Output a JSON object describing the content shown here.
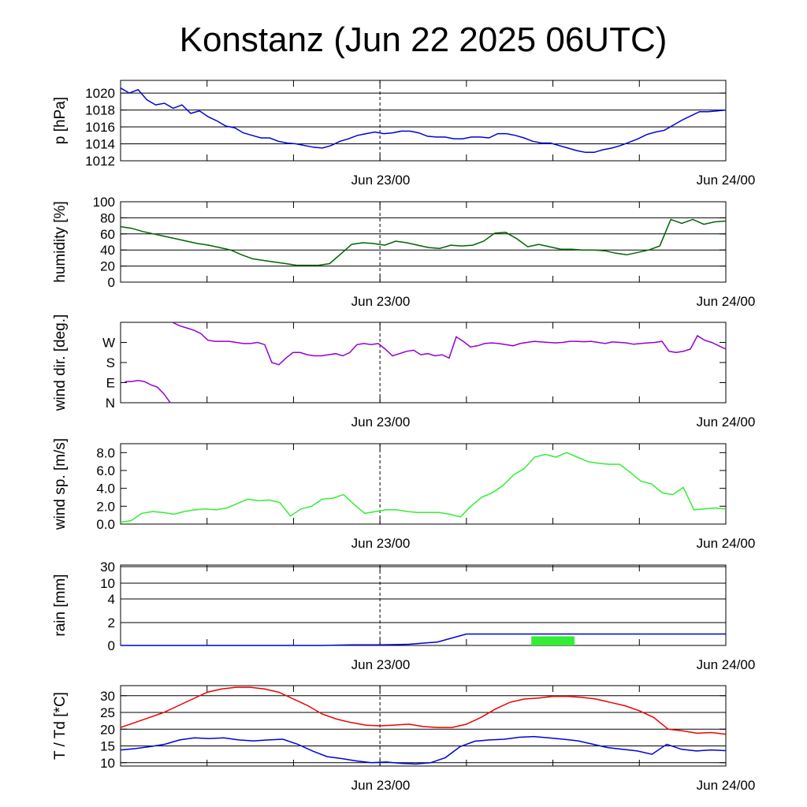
{
  "title": "Konstanz (Jun 22 2025 06UTC)",
  "colors": {
    "pressure": "#0000dd",
    "humidity": "#006400",
    "wind_dir": "#9400d3",
    "wind_speed": "#33ee33",
    "rain_line": "#0000dd",
    "rain_bar": "#33ee33",
    "temperature": "#ee0000",
    "dewpoint": "#0000dd"
  },
  "chart_data": [
    {
      "type": "line",
      "ylabel": "p [hPa]",
      "x_tick_labels": [
        "Jun 23/00",
        "Jun 24/00"
      ],
      "x_range_hours": [
        0,
        42
      ],
      "ylim": [
        1012,
        1021.5
      ],
      "yticks": [
        1012,
        1014,
        1016,
        1018,
        1020
      ],
      "grid": true,
      "series": [
        {
          "values": [
            1020.6,
            1020.0,
            1020.4,
            1019.2,
            1018.6,
            1018.8,
            1018.2,
            1018.6,
            1017.6,
            1017.9,
            1017.2,
            1016.7,
            1016.1,
            1015.9,
            1015.3,
            1015.0,
            1014.7,
            1014.7,
            1014.3,
            1014.1,
            1014.0,
            1013.8,
            1013.6,
            1013.5,
            1013.8,
            1014.3,
            1014.6,
            1015.0,
            1015.2,
            1015.4,
            1015.2,
            1015.3,
            1015.5,
            1015.5,
            1015.3,
            1014.9,
            1014.8,
            1014.8,
            1014.6,
            1014.6,
            1014.8,
            1014.8,
            1014.7,
            1015.2,
            1015.2,
            1015.0,
            1014.7,
            1014.3,
            1014.1,
            1014.1,
            1013.8,
            1013.5,
            1013.2,
            1013.0,
            1013.0,
            1013.3,
            1013.5,
            1013.8,
            1014.2,
            1014.6,
            1015.1,
            1015.4,
            1015.6,
            1016.2,
            1016.8,
            1017.3,
            1017.8,
            1017.8,
            1017.9,
            1018.0
          ]
        }
      ]
    },
    {
      "type": "line",
      "ylabel": "humidity [%]",
      "x_tick_labels": [
        "Jun 23/00",
        "Jun 24/00"
      ],
      "x_range_hours": [
        0,
        42
      ],
      "ylim": [
        0,
        100
      ],
      "yticks": [
        0,
        20,
        40,
        60,
        80,
        100
      ],
      "grid": true,
      "series": [
        {
          "values": [
            69,
            67,
            63,
            60,
            57,
            54,
            51,
            48,
            46,
            43,
            40,
            34,
            29,
            27,
            25,
            23,
            21,
            21,
            21,
            23,
            35,
            47,
            49,
            48,
            46,
            51,
            49,
            46,
            43,
            42,
            46,
            45,
            46,
            51,
            61,
            62,
            54,
            44,
            47,
            44,
            41,
            41,
            40,
            40,
            39,
            36,
            34,
            37,
            40,
            45,
            78,
            73,
            78,
            72,
            75,
            76
          ]
        }
      ]
    },
    {
      "type": "line",
      "ylabel": "wind dir. [deg.]",
      "x_tick_labels": [
        "Jun 23/00",
        "Jun 24/00"
      ],
      "x_range_hours": [
        0,
        42
      ],
      "ylim": [
        0,
        360
      ],
      "yticks": [
        0,
        90,
        180,
        270
      ],
      "ytick_labels": [
        "N",
        "E",
        "S",
        "W"
      ],
      "grid": false,
      "series": [
        {
          "values": [
            95,
            95,
            100,
            95,
            80,
            70,
            40,
            0
          ]
        },
        {
          "values": [
            360,
            345,
            335,
            325,
            310,
            280,
            275,
            275,
            275,
            270,
            265,
            265,
            270,
            260,
            180,
            170,
            200,
            225,
            225,
            215,
            210,
            210,
            215,
            220,
            210,
            225,
            260,
            265,
            260,
            265,
            240,
            210,
            220,
            230,
            235,
            215,
            220,
            210,
            215,
            200,
            295,
            275,
            250,
            255,
            265,
            268,
            265,
            260,
            255,
            265,
            270,
            275,
            272,
            270,
            268,
            270,
            275,
            275,
            273,
            275,
            270,
            265,
            272,
            270,
            268,
            262,
            265,
            268,
            270,
            275,
            230,
            225,
            230,
            240,
            300,
            280,
            270,
            255,
            240
          ]
        }
      ]
    },
    {
      "type": "line",
      "ylabel": "wind sp. [m/s]",
      "x_tick_labels": [
        "Jun 23/00",
        "Jun 24/00"
      ],
      "x_range_hours": [
        0,
        42
      ],
      "ylim": [
        0,
        9
      ],
      "yticks": [
        0,
        2,
        4,
        6,
        8
      ],
      "ytick_labels": [
        "0.0",
        "2.0",
        "4.0",
        "6.0",
        "8.0"
      ],
      "grid": false,
      "series": [
        {
          "values": [
            0.2,
            0.4,
            1.2,
            1.4,
            1.3,
            1.1,
            1.4,
            1.6,
            1.7,
            1.6,
            1.8,
            2.3,
            2.8,
            2.6,
            2.7,
            2.4,
            0.9,
            1.7,
            2.0,
            2.8,
            2.9,
            3.3,
            2.2,
            1.2,
            1.4,
            1.6,
            1.6,
            1.4,
            1.3,
            1.3,
            1.3,
            1.1,
            0.8,
            2.0,
            3.0,
            3.5,
            4.3,
            5.5,
            6.2,
            7.5,
            7.8,
            7.5,
            8.0,
            7.5,
            7.0,
            6.8,
            6.7,
            6.7,
            5.8,
            4.8,
            4.5,
            3.5,
            3.3,
            4.1,
            1.6,
            1.7,
            1.8,
            1.7
          ]
        }
      ]
    },
    {
      "type": "bar",
      "ylabel": "rain [mm]",
      "x_tick_labels": [
        "Jun 23/00",
        "Jun 24/00"
      ],
      "x_range_hours": [
        0,
        42
      ],
      "yticks": [
        0,
        2,
        4,
        10,
        30
      ],
      "grid": true,
      "series": [
        {
          "values": [
            0,
            0,
            0,
            0,
            0,
            0,
            0,
            0,
            0.05,
            0.05,
            0.1,
            0.3,
            1.0,
            1.0,
            1.0,
            1.0,
            1.0,
            1.0,
            1.0,
            1.0,
            1.0,
            1.0
          ]
        },
        {
          "values": [
            0.8
          ]
        }
      ]
    },
    {
      "type": "line",
      "ylabel": "T / Td [*C]",
      "x_tick_labels": [
        "Jun 23/00",
        "Jun 24/00"
      ],
      "x_range_hours": [
        0,
        42
      ],
      "ylim": [
        9,
        33
      ],
      "yticks": [
        10,
        15,
        20,
        25,
        30
      ],
      "grid": true,
      "series": [
        {
          "values": [
            20.5,
            22.0,
            23.5,
            25.0,
            27.0,
            29.0,
            31.0,
            32.0,
            32.5,
            32.5,
            32.0,
            31.0,
            29.0,
            27.0,
            24.5,
            23.0,
            22.0,
            21.2,
            21.0,
            21.2,
            21.5,
            20.8,
            20.5,
            20.5,
            21.5,
            23.5,
            26.0,
            28.0,
            29.0,
            29.3,
            29.8,
            29.8,
            29.5,
            29.0,
            28.0,
            27.0,
            25.5,
            23.5,
            20.0,
            19.5,
            18.8,
            19.0,
            18.5
          ]
        },
        {
          "values": [
            13.8,
            14.2,
            14.8,
            15.5,
            16.8,
            17.4,
            17.2,
            17.4,
            16.8,
            16.5,
            16.8,
            17.0,
            15.5,
            13.5,
            11.8,
            11.2,
            10.5,
            10.0,
            10.2,
            9.8,
            9.6,
            10.0,
            11.5,
            14.8,
            16.4,
            16.8,
            17.0,
            17.6,
            17.8,
            17.4,
            17.0,
            16.5,
            15.5,
            14.5,
            14.0,
            13.5,
            12.5,
            15.5,
            14.0,
            13.5,
            13.8,
            13.6
          ]
        }
      ]
    }
  ]
}
